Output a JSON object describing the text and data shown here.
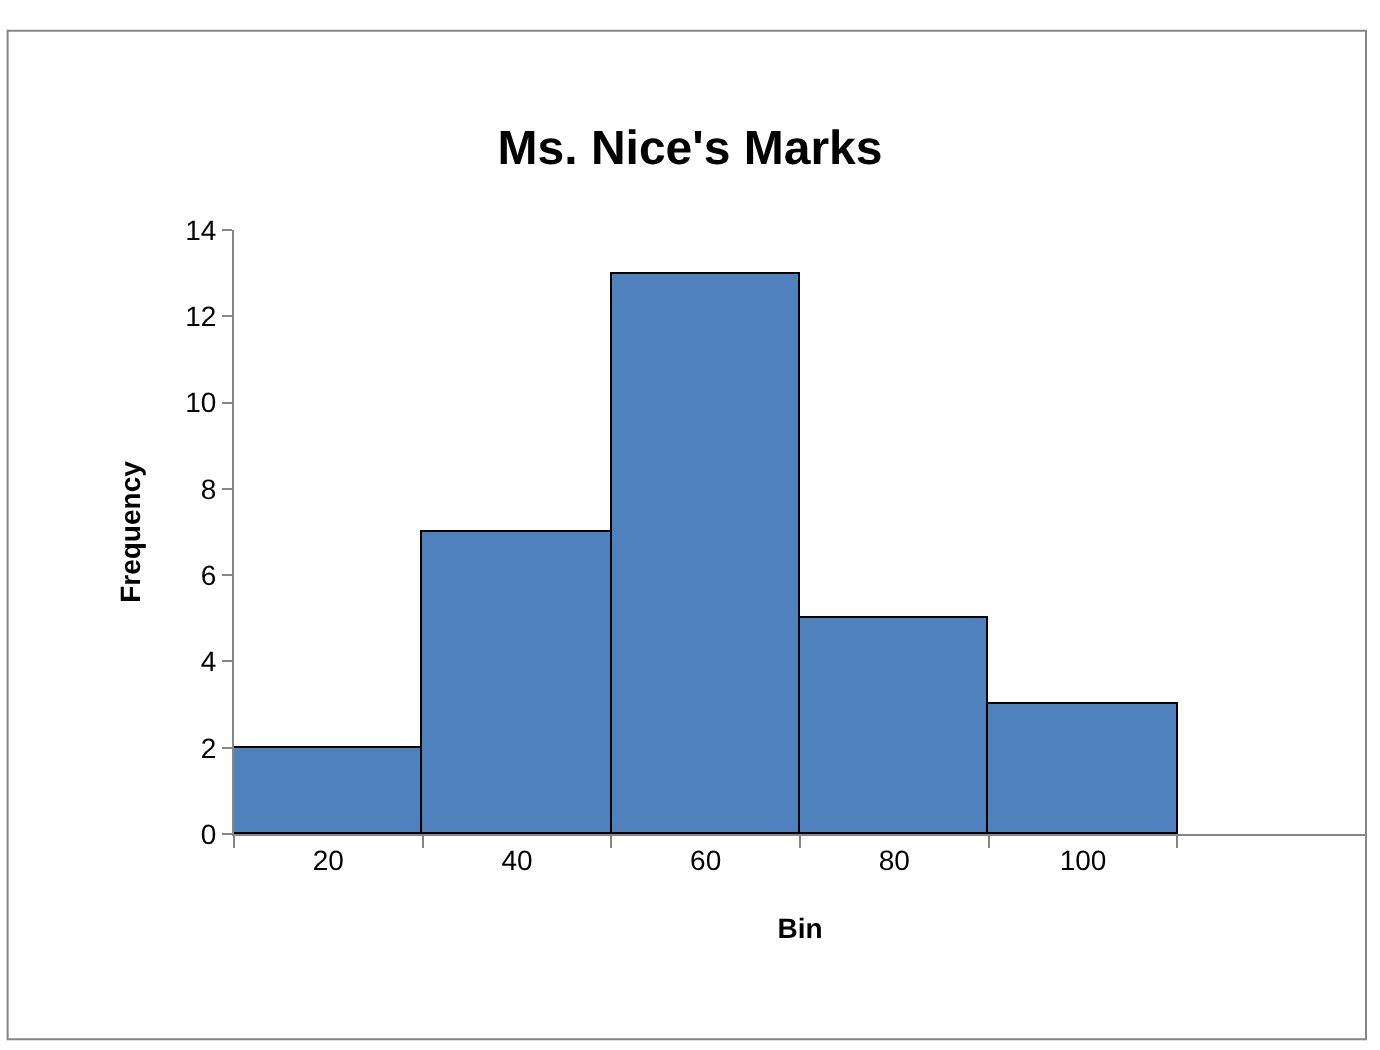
{
  "chart_data": {
    "type": "bar",
    "title": "Ms. Nice's Marks",
    "xlabel": "Bin",
    "ylabel": "Frequency",
    "categories": [
      "20",
      "40",
      "60",
      "80",
      "100",
      null
    ],
    "values": [
      2,
      7,
      13,
      5,
      3,
      null
    ],
    "color": "#4f81bd",
    "ylim": [
      0,
      14
    ],
    "yticks": [
      0,
      2,
      4,
      6,
      8,
      10,
      12,
      14
    ]
  }
}
